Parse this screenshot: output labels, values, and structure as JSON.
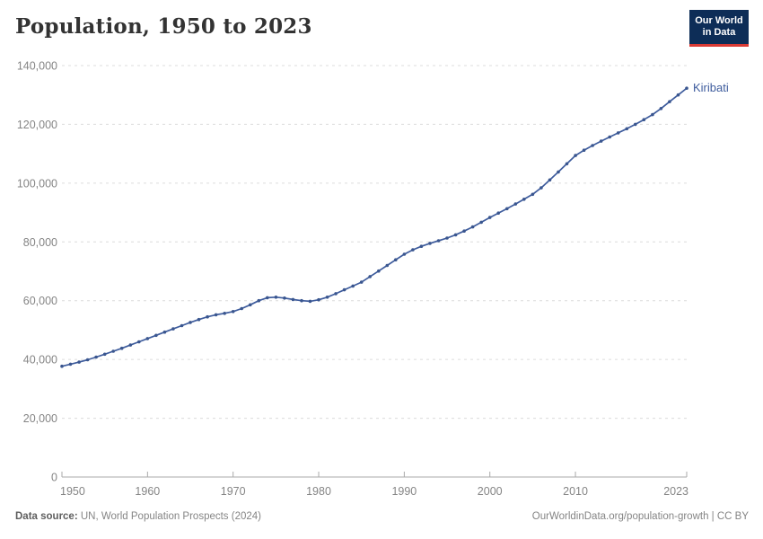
{
  "title": "Population, 1950 to 2023",
  "logo": {
    "line1": "Our World",
    "line2": "in Data"
  },
  "footer": {
    "source_prefix": "Data source:",
    "source_text": " UN, World Population Prospects (2024)",
    "link_text": "OurWorldinData.org/population-growth | CC BY"
  },
  "colors": {
    "accent_line": "#3e5c9d",
    "marker": "#3a568f",
    "entity_label": "#3e5c9d",
    "gridline": "#dcdcdc",
    "axis": "#a9a9a9",
    "tick_label": "#858585",
    "logo_bg": "#0d2d57",
    "logo_stripe": "#d93a34",
    "title_text": "#333333"
  },
  "chart_data": {
    "type": "line",
    "title": "Population, 1950 to 2023",
    "xlabel": "",
    "ylabel": "",
    "xlim": [
      1950,
      2023
    ],
    "ylim": [
      0,
      140000
    ],
    "xticks": [
      1950,
      1960,
      1970,
      1980,
      1990,
      2000,
      2010,
      2023
    ],
    "yticks": [
      0,
      20000,
      40000,
      60000,
      80000,
      100000,
      120000,
      140000
    ],
    "grid": "horizontal-dashed",
    "legend_position": "end-of-line-label",
    "series": [
      {
        "name": "Kiribati",
        "x": [
          1950,
          1951,
          1952,
          1953,
          1954,
          1955,
          1956,
          1957,
          1958,
          1959,
          1960,
          1961,
          1962,
          1963,
          1964,
          1965,
          1966,
          1967,
          1968,
          1969,
          1970,
          1971,
          1972,
          1973,
          1974,
          1975,
          1976,
          1977,
          1978,
          1979,
          1980,
          1981,
          1982,
          1983,
          1984,
          1985,
          1986,
          1987,
          1988,
          1989,
          1990,
          1991,
          1992,
          1993,
          1994,
          1995,
          1996,
          1997,
          1998,
          1999,
          2000,
          2001,
          2002,
          2003,
          2004,
          2005,
          2006,
          2007,
          2008,
          2009,
          2010,
          2011,
          2012,
          2013,
          2014,
          2015,
          2016,
          2017,
          2018,
          2019,
          2020,
          2021,
          2022,
          2023
        ],
        "values": [
          37700,
          38400,
          39100,
          39900,
          40800,
          41800,
          42800,
          43800,
          44900,
          46000,
          47100,
          48200,
          49300,
          50400,
          51500,
          52600,
          53600,
          54500,
          55200,
          55700,
          56300,
          57300,
          58600,
          60000,
          61000,
          61200,
          60900,
          60400,
          60000,
          59800,
          60300,
          61200,
          62400,
          63700,
          65000,
          66300,
          68200,
          70100,
          72000,
          73900,
          75800,
          77300,
          78500,
          79500,
          80400,
          81300,
          82400,
          83700,
          85100,
          86700,
          88300,
          89800,
          91300,
          92900,
          94500,
          96200,
          98400,
          101100,
          103800,
          106600,
          109400,
          111200,
          112800,
          114300,
          115700,
          117100,
          118500,
          120000,
          121600,
          123300,
          125400,
          127700,
          130000,
          132300
        ]
      }
    ]
  }
}
